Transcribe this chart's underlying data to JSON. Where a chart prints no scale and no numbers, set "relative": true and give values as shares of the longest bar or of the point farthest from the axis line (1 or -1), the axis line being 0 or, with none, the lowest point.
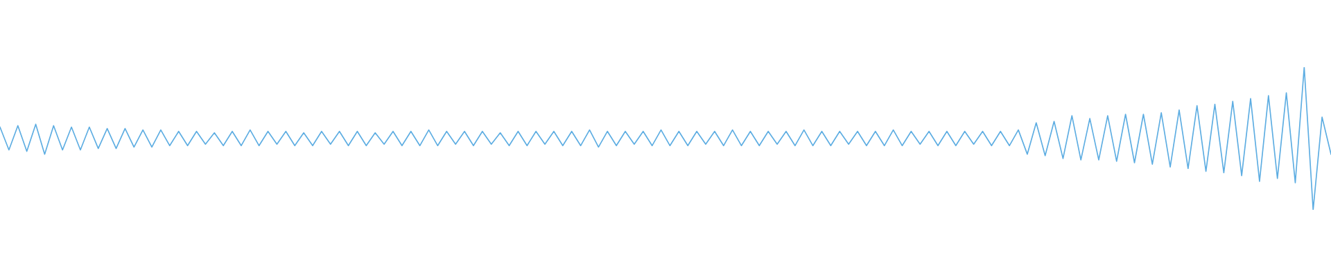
{
  "chart_data": {
    "type": "line",
    "relative": true,
    "color": "#5dade2",
    "categories": [
      null,
      null,
      null,
      null,
      null,
      null,
      null,
      null,
      null,
      null,
      null,
      null,
      null,
      null,
      null,
      null,
      null,
      null,
      null,
      null,
      null,
      null,
      null,
      null,
      null,
      null,
      null,
      null,
      null,
      null,
      null,
      null,
      null,
      null,
      null,
      null,
      null,
      null,
      null,
      null,
      null,
      null,
      null,
      null,
      null,
      null,
      null,
      null,
      null,
      null,
      null,
      null,
      null,
      null,
      null,
      null,
      null,
      null,
      null,
      null,
      null,
      null,
      null,
      null,
      null,
      null,
      null,
      null,
      null,
      null,
      null,
      null,
      null,
      null,
      null,
      null,
      null,
      null,
      null,
      null,
      null,
      null,
      null,
      null,
      null,
      null,
      null,
      null,
      null,
      null,
      null,
      null,
      null,
      null,
      null,
      null,
      null,
      null,
      null,
      null,
      null,
      null,
      null,
      null,
      null,
      null,
      null,
      null,
      null,
      null,
      null,
      null,
      null,
      null,
      null,
      null,
      null,
      null,
      null,
      null,
      null,
      null,
      null,
      null,
      null,
      null,
      null,
      null,
      null,
      null,
      null,
      null,
      null,
      null,
      null,
      null,
      null,
      null,
      null,
      null,
      null,
      null,
      null,
      null,
      null,
      null,
      null,
      null,
      null,
      null
    ],
    "values": [
      0.58,
      0.42,
      0.59,
      0.41,
      0.6,
      0.39,
      0.59,
      0.42,
      0.58,
      0.42,
      0.58,
      0.43,
      0.57,
      0.43,
      0.57,
      0.44,
      0.56,
      0.44,
      0.56,
      0.45,
      0.55,
      0.45,
      0.55,
      0.46,
      0.54,
      0.45,
      0.55,
      0.45,
      0.56,
      0.45,
      0.55,
      0.46,
      0.55,
      0.45,
      0.54,
      0.45,
      0.55,
      0.46,
      0.55,
      0.45,
      0.55,
      0.45,
      0.54,
      0.46,
      0.55,
      0.45,
      0.55,
      0.45,
      0.56,
      0.45,
      0.55,
      0.46,
      0.55,
      0.45,
      0.55,
      0.46,
      0.54,
      0.45,
      0.55,
      0.45,
      0.55,
      0.46,
      0.55,
      0.45,
      0.55,
      0.45,
      0.56,
      0.44,
      0.55,
      0.45,
      0.55,
      0.46,
      0.55,
      0.45,
      0.56,
      0.45,
      0.55,
      0.45,
      0.55,
      0.46,
      0.55,
      0.45,
      0.56,
      0.45,
      0.55,
      0.45,
      0.55,
      0.46,
      0.55,
      0.45,
      0.56,
      0.45,
      0.55,
      0.45,
      0.55,
      0.46,
      0.55,
      0.45,
      0.55,
      0.45,
      0.56,
      0.45,
      0.55,
      0.46,
      0.55,
      0.45,
      0.55,
      0.45,
      0.55,
      0.46,
      0.55,
      0.45,
      0.55,
      0.45,
      0.56,
      0.39,
      0.61,
      0.38,
      0.62,
      0.36,
      0.66,
      0.35,
      0.64,
      0.35,
      0.66,
      0.34,
      0.67,
      0.33,
      0.67,
      0.32,
      0.68,
      0.3,
      0.7,
      0.29,
      0.73,
      0.27,
      0.74,
      0.26,
      0.76,
      0.24,
      0.78,
      0.2,
      0.8,
      0.22,
      0.82,
      0.19,
      1.0,
      0.0,
      0.65,
      0.39
    ]
  }
}
